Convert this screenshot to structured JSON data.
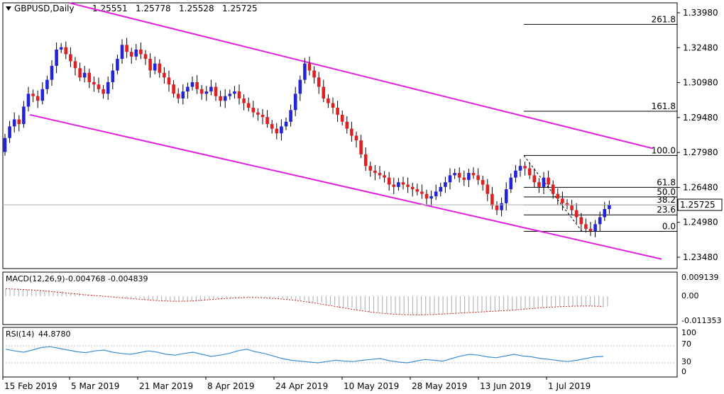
{
  "header": {
    "menu_arrow": "triangle-down",
    "symbol": "GBPUSD,Daily",
    "open": "1.25551",
    "high": "1.25778",
    "low": "1.25528",
    "close": "1.25725"
  },
  "macd": {
    "label": "MACD(12,26,9)",
    "v1": "-0.004768",
    "v2": "-0.004839",
    "ticks": [
      "0.009139",
      "0.00",
      "-0.011353"
    ]
  },
  "rsi": {
    "label": "RSI(14)",
    "value": "44.8780",
    "ticks": [
      "100",
      "70",
      "30",
      "0"
    ]
  },
  "price_badge": "1.25725",
  "colors": {
    "bull": "#2323d8",
    "bear": "#e02020",
    "channel": "#e020e0",
    "macd_signal": "#c81e1e",
    "rsi_line": "#3b8fd9",
    "badge_bg": "#ffffff"
  },
  "chart_data": {
    "type": "candlestick",
    "title": "GBPUSD,Daily",
    "y_ticks": [
      "1.33980",
      "1.32480",
      "1.30980",
      "1.29480",
      "1.27980",
      "1.26480",
      "1.24980",
      "1.23480"
    ],
    "ylim": [
      1.2298,
      1.3458
    ],
    "x_ticks": [
      "15 Feb 2019",
      "5 Mar 2019",
      "21 Mar 2019",
      "8 Apr 2019",
      "24 Apr 2019",
      "10 May 2019",
      "28 May 2019",
      "13 Jun 2019",
      "1 Jul 2019"
    ],
    "fib_levels": [
      {
        "label": "261.8",
        "price": 1.3348
      },
      {
        "label": "161.8",
        "price": 1.2975
      },
      {
        "label": "100.0",
        "price": 1.2785
      },
      {
        "label": "61.8",
        "price": 1.2648
      },
      {
        "label": "50.0",
        "price": 1.2607
      },
      {
        "label": "38.2",
        "price": 1.2573
      },
      {
        "label": "23.6",
        "price": 1.253
      },
      {
        "label": "0.0",
        "price": 1.2459
      }
    ],
    "closes": [
      1.286,
      1.291,
      1.294,
      1.292,
      1.2995,
      1.305,
      1.304,
      1.302,
      1.307,
      1.311,
      1.317,
      1.324,
      1.325,
      1.322,
      1.319,
      1.316,
      1.312,
      1.314,
      1.31,
      1.309,
      1.307,
      1.305,
      1.31,
      1.315,
      1.32,
      1.326,
      1.323,
      1.321,
      1.324,
      1.322,
      1.32,
      1.315,
      1.318,
      1.314,
      1.312,
      1.309,
      1.305,
      1.303,
      1.306,
      1.308,
      1.31,
      1.307,
      1.305,
      1.306,
      1.308,
      1.304,
      1.302,
      1.304,
      1.305,
      1.306,
      1.303,
      1.301,
      1.299,
      1.297,
      1.296,
      1.295,
      1.292,
      1.29,
      1.288,
      1.291,
      1.293,
      1.298,
      1.305,
      1.311,
      1.318,
      1.315,
      1.312,
      1.308,
      1.303,
      1.301,
      1.299,
      1.296,
      1.293,
      1.29,
      1.287,
      1.285,
      1.279,
      1.274,
      1.272,
      1.271,
      1.27,
      1.269,
      1.266,
      1.265,
      1.267,
      1.266,
      1.265,
      1.264,
      1.263,
      1.262,
      1.26,
      1.261,
      1.263,
      1.265,
      1.267,
      1.27,
      1.271,
      1.269,
      1.268,
      1.271,
      1.27,
      1.268,
      1.266,
      1.262,
      1.257,
      1.255,
      1.258,
      1.264,
      1.269,
      1.272,
      1.274,
      1.273,
      1.27,
      1.267,
      1.265,
      1.269,
      1.266,
      1.262,
      1.26,
      1.258,
      1.257,
      1.255,
      1.252,
      1.249,
      1.247,
      1.246,
      1.249,
      1.252,
      1.2555,
      1.2573
    ],
    "macd_signal": [
      0.0035,
      0.0032,
      0.0028,
      0.0022,
      0.0015,
      0.0008,
      0.0002,
      -0.0004,
      -0.001,
      -0.0016,
      -0.0021,
      -0.0024,
      -0.0023,
      -0.0018,
      -0.0012,
      -0.0008,
      -0.0006,
      -0.0008,
      -0.0013,
      -0.002,
      -0.003,
      -0.0042,
      -0.0054,
      -0.0066,
      -0.0076,
      -0.0083,
      -0.0087,
      -0.0088,
      -0.0086,
      -0.0082,
      -0.0078,
      -0.0074,
      -0.007,
      -0.0066,
      -0.006,
      -0.0054,
      -0.005,
      -0.0047,
      -0.0046,
      -0.0048
    ],
    "rsi": [
      62,
      58,
      55,
      60,
      66,
      68,
      64,
      60,
      56,
      54,
      58,
      60,
      55,
      52,
      50,
      54,
      58,
      55,
      50,
      48,
      52,
      55,
      50,
      45,
      48,
      52,
      58,
      62,
      56,
      52,
      46,
      40,
      36,
      34,
      32,
      30,
      33,
      36,
      34,
      33,
      36,
      38,
      40,
      35,
      32,
      30,
      34,
      38,
      36,
      34,
      40,
      46,
      50,
      48,
      44,
      42,
      46,
      50,
      46,
      44,
      40,
      38,
      35,
      33,
      36,
      40,
      44,
      45
    ]
  }
}
